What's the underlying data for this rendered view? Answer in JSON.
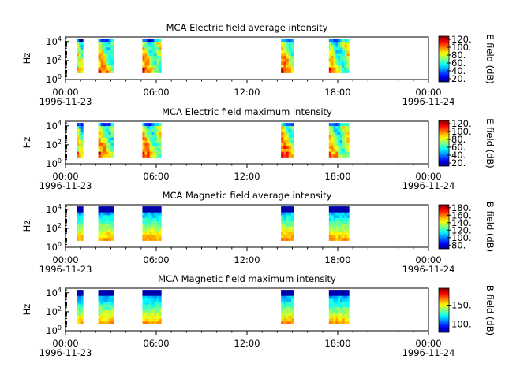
{
  "chart_data": [
    {
      "type": "heatmap",
      "title": "MCA  Electric field average intensity",
      "ylabel": "Hz",
      "yscale": "log",
      "ylim": [
        1,
        30000
      ],
      "yticks": [
        {
          "v": 1,
          "b": "10",
          "e": "0"
        },
        {
          "v": 100,
          "b": "10",
          "e": "2"
        },
        {
          "v": 10000,
          "b": "10",
          "e": "4"
        }
      ],
      "xlim": [
        "1996-11-23T00:00",
        "1996-11-24T00:00"
      ],
      "xticks": [
        "00:00",
        "06:00",
        "12:00",
        "18:00",
        "00:00"
      ],
      "xdate_left": "1996-11-23",
      "xdate_right": "1996-11-24",
      "colorbar": {
        "label": "E field (dB)",
        "range": [
          12,
          128
        ],
        "ticks": [
          "20.",
          "40.",
          "60.",
          "80.",
          "100.",
          "120."
        ]
      },
      "segments": [
        {
          "start": "00:45",
          "end": "01:10",
          "level": 72
        },
        {
          "start": "02:10",
          "end": "03:10",
          "level": 80
        },
        {
          "start": "05:05",
          "end": "06:20",
          "level": 82
        },
        {
          "start": "14:15",
          "end": "15:05",
          "level": 85
        },
        {
          "start": "17:25",
          "end": "18:45",
          "level": 78
        }
      ]
    },
    {
      "type": "heatmap",
      "title": "MCA  Electric field maximum intensity",
      "ylabel": "Hz",
      "yscale": "log",
      "ylim": [
        1,
        30000
      ],
      "yticks": [
        {
          "v": 1,
          "b": "10",
          "e": "0"
        },
        {
          "v": 100,
          "b": "10",
          "e": "2"
        },
        {
          "v": 10000,
          "b": "10",
          "e": "4"
        }
      ],
      "xlim": [
        "1996-11-23T00:00",
        "1996-11-24T00:00"
      ],
      "xticks": [
        "00:00",
        "06:00",
        "12:00",
        "18:00",
        "00:00"
      ],
      "xdate_left": "1996-11-23",
      "xdate_right": "1996-11-24",
      "colorbar": {
        "label": "E field (dB)",
        "range": [
          12,
          128
        ],
        "ticks": [
          "20.",
          "40.",
          "60.",
          "80.",
          "100.",
          "120."
        ]
      },
      "segments": [
        {
          "start": "00:45",
          "end": "01:10",
          "level": 74
        },
        {
          "start": "02:10",
          "end": "03:10",
          "level": 82
        },
        {
          "start": "05:05",
          "end": "06:20",
          "level": 84
        },
        {
          "start": "14:15",
          "end": "15:05",
          "level": 88
        },
        {
          "start": "17:25",
          "end": "18:45",
          "level": 80
        }
      ]
    },
    {
      "type": "heatmap",
      "title": "MCA  Magnetic field average intensity",
      "ylabel": "Hz",
      "yscale": "log",
      "ylim": [
        1,
        30000
      ],
      "yticks": [
        {
          "v": 1,
          "b": "10",
          "e": "0"
        },
        {
          "v": 100,
          "b": "10",
          "e": "2"
        },
        {
          "v": 10000,
          "b": "10",
          "e": "4"
        }
      ],
      "xlim": [
        "1996-11-23T00:00",
        "1996-11-24T00:00"
      ],
      "xticks": [
        "00:00",
        "06:00",
        "12:00",
        "18:00",
        "00:00"
      ],
      "xdate_left": "1996-11-23",
      "xdate_right": "1996-11-24",
      "colorbar": {
        "label": "B field (dB)",
        "range": [
          70,
          188
        ],
        "ticks": [
          "80.",
          "100.",
          "120.",
          "140.",
          "160.",
          "180."
        ]
      },
      "segments": [
        {
          "start": "00:45",
          "end": "01:10",
          "level": 120
        },
        {
          "start": "02:10",
          "end": "03:10",
          "level": 122
        },
        {
          "start": "05:05",
          "end": "06:20",
          "level": 122
        },
        {
          "start": "14:15",
          "end": "15:05",
          "level": 124
        },
        {
          "start": "17:25",
          "end": "18:45",
          "level": 122
        }
      ]
    },
    {
      "type": "heatmap",
      "title": "MCA  Magnetic field maximum intensity",
      "ylabel": "Hz",
      "yscale": "log",
      "ylim": [
        1,
        30000
      ],
      "yticks": [
        {
          "v": 1,
          "b": "10",
          "e": "0"
        },
        {
          "v": 100,
          "b": "10",
          "e": "2"
        },
        {
          "v": 10000,
          "b": "10",
          "e": "4"
        }
      ],
      "xlim": [
        "1996-11-23T00:00",
        "1996-11-24T00:00"
      ],
      "xticks": [
        "00:00",
        "06:00",
        "12:00",
        "18:00",
        "00:00"
      ],
      "xdate_left": "1996-11-23",
      "xdate_right": "1996-11-24",
      "colorbar": {
        "label": "B field (dB)",
        "range": [
          78,
          195
        ],
        "ticks": [
          "100.",
          "150."
        ]
      },
      "segments": [
        {
          "start": "00:45",
          "end": "01:10",
          "level": 125
        },
        {
          "start": "02:10",
          "end": "03:10",
          "level": 128
        },
        {
          "start": "05:05",
          "end": "06:20",
          "level": 128
        },
        {
          "start": "14:15",
          "end": "15:05",
          "level": 130
        },
        {
          "start": "17:25",
          "end": "18:45",
          "level": 128
        }
      ]
    }
  ]
}
